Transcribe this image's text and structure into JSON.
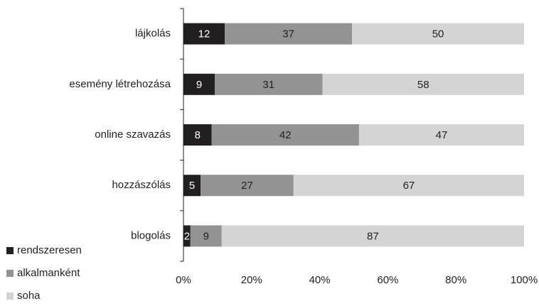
{
  "chart_data": {
    "type": "bar",
    "orientation": "horizontal",
    "stacked": "percent",
    "categories": [
      "lájkolás",
      "esemény létrehozása",
      "online szavazás",
      "hozzászólás",
      "blogolás"
    ],
    "series": [
      {
        "name": "rendszeresen",
        "color": "#231f20",
        "label_color": "#ffffff",
        "values": [
          12,
          9,
          8,
          5,
          2
        ]
      },
      {
        "name": "alkalmanként",
        "color": "#939393",
        "label_color": "#222222",
        "values": [
          37,
          31,
          42,
          27,
          9
        ]
      },
      {
        "name": "soha",
        "color": "#d4d4d4",
        "label_color": "#222222",
        "values": [
          50,
          58,
          47,
          67,
          87
        ]
      }
    ],
    "xlim": [
      0,
      100
    ],
    "xticks": [
      {
        "value": 0,
        "label": "0%"
      },
      {
        "value": 20,
        "label": "20%"
      },
      {
        "value": 40,
        "label": "40%"
      },
      {
        "value": 60,
        "label": "60%"
      },
      {
        "value": 80,
        "label": "80%"
      },
      {
        "value": 100,
        "label": "100%"
      }
    ],
    "grid": false,
    "legend": "bottom-left"
  }
}
